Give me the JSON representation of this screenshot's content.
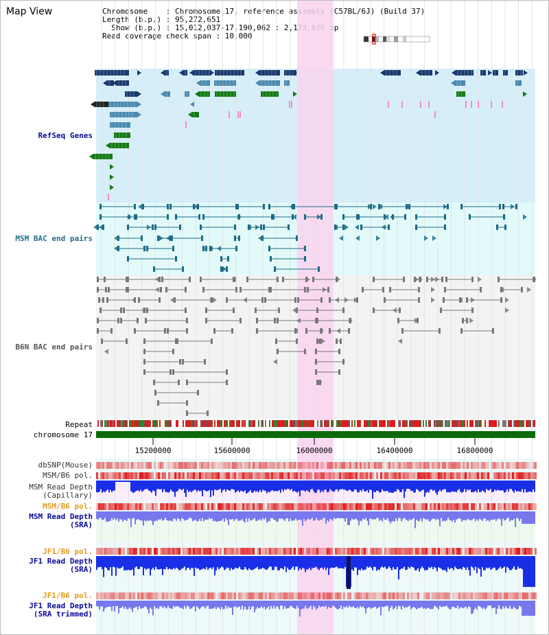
{
  "window": {
    "title": "Map View"
  },
  "info": {
    "chromosome": "Chromosome    : Chromosome 17, reference assembly (C57BL/6J) (Build 37)",
    "length": "Length (b.p.) : 95,272,651",
    "show": "  Show (b.p.) : 15,012,037-17,190,062 : 2,178,026 bp",
    "coverage": "Read coverage check span : 10,000"
  },
  "tracks": {
    "refseq": "RefSeq Genes",
    "msm_bac": "MSM BAC end pairs",
    "b6n_bac": "B6N BAC end pairs",
    "repeat": "Repeat",
    "chromosome": "chromosome 17",
    "dbsnp": "dbSNP(Mouse)",
    "msm_pol1": "MSM/B6 pol.",
    "msm_depth_cap_1": "MSM Read Depth",
    "msm_depth_cap_2": "(Capillary)",
    "msm_pol2": "MSM/B6 pol.",
    "msm_depth_sra_1": "MSM Read Depth",
    "msm_depth_sra_2": "(SRA)",
    "jf1_pol1": "JF1/B6 pol.",
    "jf1_depth_sra_1": "JF1 Read Depth",
    "jf1_depth_sra_2": "(SRA)",
    "jf1_pol2": "JF1/B6 pol.",
    "jf1_depth_tr_1": "JF1 Read Depth",
    "jf1_depth_tr_2": "(SRA trimmed)"
  },
  "axis": {
    "ticks": [
      "15200000",
      "15600000",
      "16000000",
      "16400000",
      "16800000"
    ]
  },
  "colors": {
    "refseq_bg": "#d6eef8",
    "msm_bg": "#e2fafa",
    "b6n_bg": "#f3f3f3",
    "highlight": "#f9d4ef",
    "gene_dark": "#1a3a6e",
    "gene_mid": "#4a8ab0",
    "gene_green": "#137a13",
    "msm_bac": "#1c6b85",
    "b6n_bac": "#777777",
    "depth_msm": "#1a2ee8",
    "depth_sra": "#7777ee",
    "label_blue": "#0a0a9c",
    "label_teal": "#1f6d8a",
    "label_gray": "#555555",
    "label_orange": "#e49a1a"
  }
}
